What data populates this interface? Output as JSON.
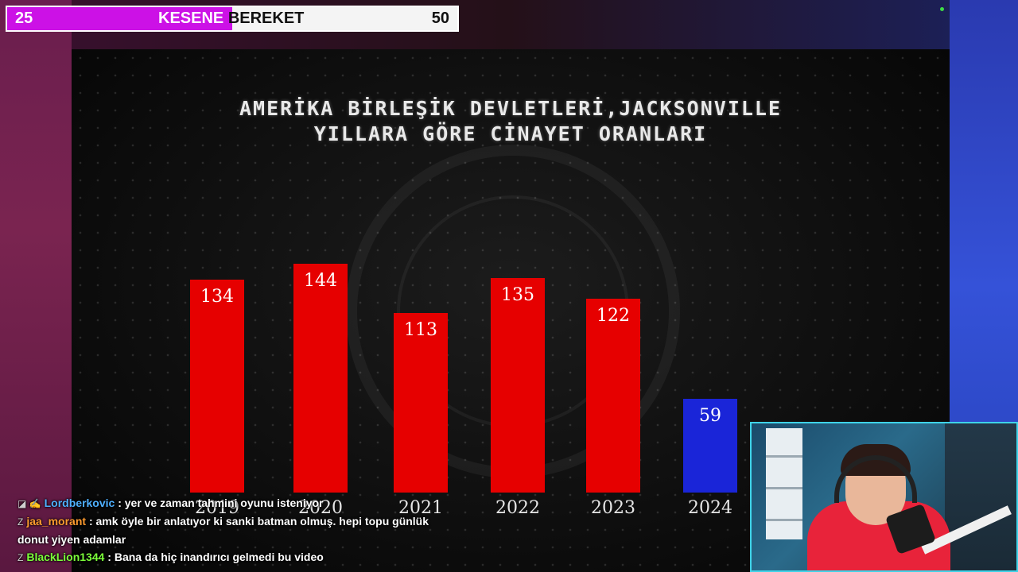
{
  "goal_bar": {
    "start_value": "25",
    "label_part1": "KESENE",
    "label_part2": "BEREKET",
    "end_value": "50",
    "progress_fraction": 0.5,
    "fill_color": "#cc11e6"
  },
  "video": {
    "title_line1": "AMERİKA BİRLEŞİK DEVLETLERİ,JACKSONVILLE",
    "title_line2": "YILLARA GÖRE CİNAYET ORANLARI"
  },
  "chart_data": {
    "type": "bar",
    "title": "AMERİKA BİRLEŞİK DEVLETLERİ,JACKSONVILLE YILLARA GÖRE CİNAYET ORANLARI",
    "categories": [
      "2019",
      "2020",
      "2021",
      "2022",
      "2023",
      "2024"
    ],
    "values": [
      134,
      144,
      113,
      135,
      122,
      59
    ],
    "bar_colors": [
      "#e60000",
      "#e60000",
      "#e60000",
      "#e60000",
      "#e60000",
      "#1a25d8"
    ],
    "ylim": [
      0,
      150
    ],
    "grid": false,
    "legend": "none"
  },
  "chat": {
    "messages": [
      {
        "user": "Lordberkovic",
        "text": ": yer ve zaman tahmini oyunu isteniyor",
        "badge": "◪ ✍"
      },
      {
        "user": "jaa_morant",
        "text": ": amk öyle bir anlatıyor ki sanki batman olmuş. hepi topu günlük donut yiyen adamlar",
        "badge": "Z"
      },
      {
        "user": "BlackLion1344",
        "text": ": Bana da hiç inandırıcı gelmedi bu video",
        "badge": "Z"
      }
    ]
  },
  "colors": {
    "webcam_border": "#3fd3e8",
    "status_dot": "#3ddc46"
  }
}
